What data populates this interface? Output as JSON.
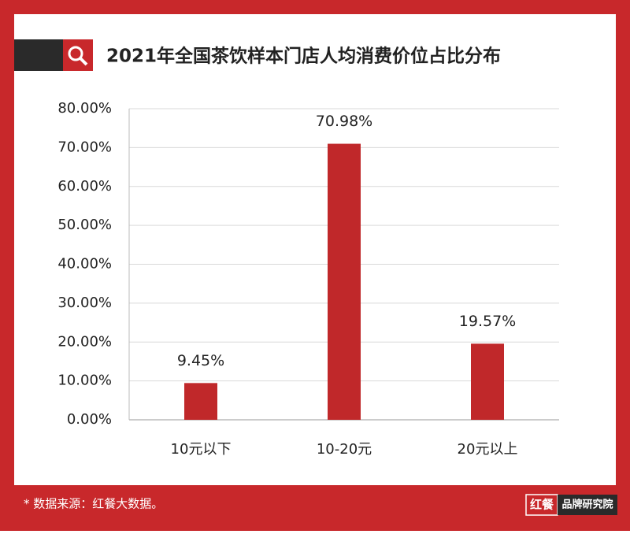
{
  "chart_data": {
    "type": "bar",
    "title": "2021年全国茶饮样本门店人均消费价位占比分布",
    "categories": [
      "10元以下",
      "10-20元",
      "20元以上"
    ],
    "values": [
      9.45,
      70.98,
      19.57
    ],
    "value_labels": [
      "9.45%",
      "70.98%",
      "19.57%"
    ],
    "color": "#c0282a",
    "ylim": [
      0,
      80
    ],
    "yticks": [
      {
        "value": 0,
        "label": "0.00%"
      },
      {
        "value": 10,
        "label": "10.00%"
      },
      {
        "value": 20,
        "label": "20.00%"
      },
      {
        "value": 30,
        "label": "30.00%"
      },
      {
        "value": 40,
        "label": "40.00%"
      },
      {
        "value": 50,
        "label": "50.00%"
      },
      {
        "value": 60,
        "label": "60.00%"
      },
      {
        "value": 70,
        "label": "70.00%"
      },
      {
        "value": 80,
        "label": "80.00%"
      }
    ],
    "grid": true
  },
  "footer": {
    "source": "* 数据来源：红餐大数据。",
    "logo_mark": "红餐",
    "logo_text": "品牌研究院"
  }
}
